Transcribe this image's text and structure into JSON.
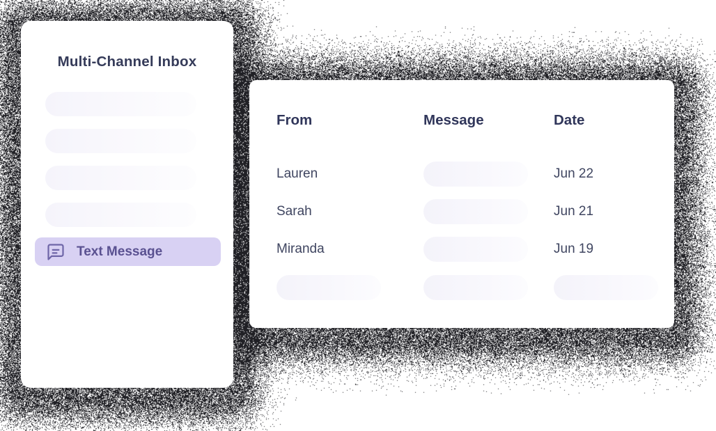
{
  "sidebar": {
    "title": "Multi-Channel Inbox",
    "placeholder_items": [
      "",
      "",
      "",
      ""
    ],
    "selected_item": {
      "label": "Text Message",
      "icon": "message-square-icon"
    }
  },
  "table": {
    "columns": [
      "From",
      "Message",
      "Date"
    ],
    "rows": [
      {
        "from": "Lauren",
        "message": "",
        "message_is_placeholder": true,
        "date": "Jun 22"
      },
      {
        "from": "Sarah",
        "message": "",
        "message_is_placeholder": true,
        "date": "Jun 21"
      },
      {
        "from": "Miranda",
        "message": "",
        "message_is_placeholder": true,
        "date": "Jun 19"
      },
      {
        "from": "",
        "message": "",
        "date": "",
        "row_is_placeholder": true
      }
    ]
  },
  "colors": {
    "page_background": "#ffffff",
    "card_background": "#ffffff",
    "heading_text": "#353b59",
    "column_header_text": "#30365a",
    "body_text": "#3f4560",
    "selected_item_background": "#d8d1f3",
    "selected_item_text": "#5a5191",
    "selected_item_icon": "#6f66a8",
    "placeholder_pill_tint": "#f5f4fb",
    "grain_shadow": "#0d0d12"
  }
}
